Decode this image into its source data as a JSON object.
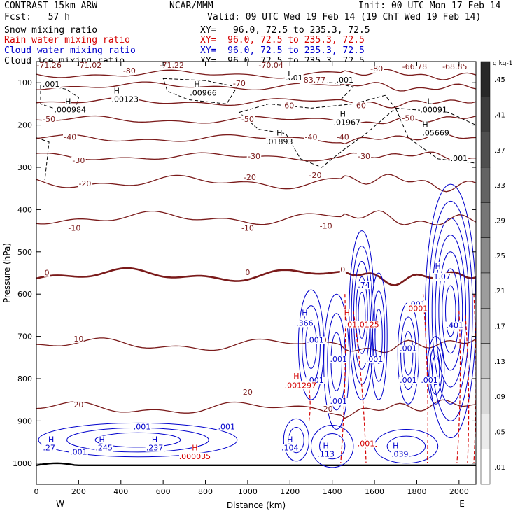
{
  "header": {
    "model": "CONTRAST 15km ARW",
    "org": "NCAR/MMM",
    "init": "Init: 00 UTC Mon 17 Feb 14",
    "fcst": "Fcst:   57 h",
    "valid": "Valid: 09 UTC Wed 19 Feb 14 (19 ChT Wed 19 Feb 14)"
  },
  "fields": [
    {
      "name": "Snow mixing ratio",
      "xy": "XY=   96.0, 72.5 to 235.3, 72.5",
      "color": "#000000"
    },
    {
      "name": "Rain water mixing ratio",
      "xy": "XY=  96.0, 72.5 to 235.3, 72.5",
      "color": "#d40000"
    },
    {
      "name": "Cloud water mixing ratio",
      "xy": "XY=  96.0, 72.5 to 235.3, 72.5",
      "color": "#0000cc"
    },
    {
      "name": "Cloud ice mixing ratio",
      "xy": "XY=  96.0, 72.5 to 235.3, 72.5",
      "color": "#000000"
    }
  ],
  "chart_data": {
    "type": "line",
    "title": "",
    "xlabel": "Distance (km)",
    "ylabel": "Pressure (hPa)",
    "xlim": [
      0,
      2080
    ],
    "ylim": [
      1050,
      50
    ],
    "x_ticks": [
      0,
      200,
      400,
      600,
      800,
      1000,
      1200,
      1400,
      1600,
      1800,
      2000
    ],
    "y_ticks": [
      100,
      200,
      300,
      400,
      500,
      600,
      700,
      800,
      900,
      1000
    ],
    "x_end_labels": {
      "left": "W",
      "right": "E"
    },
    "colors": {
      "temperature": "#7a1a1a",
      "cloud_water": "#0000cc",
      "rain": "#d40000",
      "ice": "#000000"
    },
    "temperature_isotherms": [
      {
        "value": -80,
        "p": 80
      },
      {
        "value": -70,
        "p": 108
      },
      {
        "value": -60,
        "p": 145
      },
      {
        "value": -50,
        "p": 188
      },
      {
        "value": -40,
        "p": 232
      },
      {
        "value": -30,
        "p": 275
      },
      {
        "value": -20,
        "p": 335
      },
      {
        "value": -10,
        "p": 420
      },
      {
        "value": 0,
        "p": 555
      },
      {
        "value": 10,
        "p": 720
      },
      {
        "value": 20,
        "p": 870
      }
    ],
    "temperature_labels": [
      {
        "text": "-71.26",
        "x": 60,
        "p": 65
      },
      {
        "text": "-71.02",
        "x": 250,
        "p": 65
      },
      {
        "text": "-80",
        "x": 440,
        "p": 78
      },
      {
        "text": "-71.22",
        "x": 640,
        "p": 65
      },
      {
        "text": "-70.04",
        "x": 1110,
        "p": 65
      },
      {
        "text": "-83.77",
        "x": 1310,
        "p": 100
      },
      {
        "text": "-80",
        "x": 1610,
        "p": 73
      },
      {
        "text": "-66.78",
        "x": 1790,
        "p": 68
      },
      {
        "text": "-68.85",
        "x": 1980,
        "p": 68
      },
      {
        "text": "-70",
        "x": 960,
        "p": 108
      },
      {
        "text": "-60",
        "x": 1190,
        "p": 160
      },
      {
        "text": "-60",
        "x": 1530,
        "p": 160
      },
      {
        "text": "-50",
        "x": 60,
        "p": 192
      },
      {
        "text": "-50",
        "x": 1000,
        "p": 192
      },
      {
        "text": "-50",
        "x": 1760,
        "p": 190
      },
      {
        "text": "-40",
        "x": 160,
        "p": 235
      },
      {
        "text": "-40",
        "x": 1300,
        "p": 235
      },
      {
        "text": "-40",
        "x": 1450,
        "p": 235
      },
      {
        "text": "-30",
        "x": 200,
        "p": 290
      },
      {
        "text": "-30",
        "x": 1030,
        "p": 280
      },
      {
        "text": "-30",
        "x": 1550,
        "p": 280
      },
      {
        "text": "-20",
        "x": 230,
        "p": 345
      },
      {
        "text": "-20",
        "x": 1010,
        "p": 330
      },
      {
        "text": "-20",
        "x": 1320,
        "p": 325
      },
      {
        "text": "-10",
        "x": 180,
        "p": 450
      },
      {
        "text": "-10",
        "x": 1000,
        "p": 450
      },
      {
        "text": "-10",
        "x": 1370,
        "p": 445
      },
      {
        "text": "0",
        "x": 50,
        "p": 556
      },
      {
        "text": "0",
        "x": 1000,
        "p": 555
      },
      {
        "text": "0",
        "x": 1450,
        "p": 548
      },
      {
        "text": "10",
        "x": 200,
        "p": 712
      },
      {
        "text": "10",
        "x": 1350,
        "p": 715
      },
      {
        "text": "20",
        "x": 200,
        "p": 868
      },
      {
        "text": "20",
        "x": 1000,
        "p": 838
      },
      {
        "text": "20",
        "x": 1380,
        "p": 878
      }
    ],
    "cloud_water_labels": [
      {
        "text": "H",
        "x": 1270,
        "p": 650
      },
      {
        "text": ".366",
        "x": 1270,
        "p": 675
      },
      {
        "text": ".001",
        "x": 1320,
        "p": 715
      },
      {
        "text": ".001",
        "x": 1430,
        "p": 760
      },
      {
        "text": ".001",
        "x": 1320,
        "p": 810
      },
      {
        "text": ".001",
        "x": 1430,
        "p": 860
      },
      {
        "text": ".74",
        "x": 1550,
        "p": 585
      },
      {
        "text": ".001",
        "x": 1600,
        "p": 760
      },
      {
        "text": ".001",
        "x": 1760,
        "p": 735
      },
      {
        "text": ".001",
        "x": 1760,
        "p": 810
      },
      {
        "text": ".001",
        "x": 1860,
        "p": 810
      },
      {
        "text": "H",
        "x": 1900,
        "p": 540
      },
      {
        "text": "1.07",
        "x": 1920,
        "p": 565
      },
      {
        "text": ".401",
        "x": 1980,
        "p": 680
      },
      {
        "text": ".001",
        "x": 1800,
        "p": 630
      },
      {
        "text": ".001",
        "x": 500,
        "p": 920
      },
      {
        "text": "H",
        "x": 70,
        "p": 950
      },
      {
        "text": ".27",
        "x": 60,
        "p": 970
      },
      {
        "text": ".001",
        "x": 200,
        "p": 980
      },
      {
        "text": "H",
        "x": 310,
        "p": 950
      },
      {
        "text": ".245",
        "x": 320,
        "p": 970
      },
      {
        "text": "H",
        "x": 560,
        "p": 950
      },
      {
        "text": ".237",
        "x": 560,
        "p": 970
      },
      {
        "text": ".001",
        "x": 900,
        "p": 920
      },
      {
        "text": "H",
        "x": 1200,
        "p": 950
      },
      {
        "text": ".104",
        "x": 1200,
        "p": 970
      },
      {
        "text": "H",
        "x": 1370,
        "p": 965
      },
      {
        "text": ".113",
        "x": 1370,
        "p": 985
      },
      {
        "text": "H",
        "x": 1700,
        "p": 965
      },
      {
        "text": ".039",
        "x": 1720,
        "p": 985
      }
    ],
    "rain_labels": [
      {
        "text": "H",
        "x": 1470,
        "p": 650
      },
      {
        "text": ".012",
        "x": 1500,
        "p": 678
      },
      {
        "text": ".0125",
        "x": 1570,
        "p": 678
      },
      {
        "text": "H",
        "x": 1230,
        "p": 800
      },
      {
        "text": ".001297",
        "x": 1250,
        "p": 822
      },
      {
        "text": "H",
        "x": 750,
        "p": 970
      },
      {
        "text": ".000035",
        "x": 750,
        "p": 990
      },
      {
        "text": ".001",
        "x": 1560,
        "p": 960
      },
      {
        "text": ".0001",
        "x": 1800,
        "p": 640
      }
    ],
    "ice_labels": [
      {
        "text": ".001",
        "x": 70,
        "p": 110
      },
      {
        "text": "H",
        "x": 380,
        "p": 125
      },
      {
        "text": ".00123",
        "x": 420,
        "p": 145
      },
      {
        "text": "H",
        "x": 760,
        "p": 110
      },
      {
        "text": ".00966",
        "x": 790,
        "p": 130
      },
      {
        "text": "H",
        "x": 150,
        "p": 150
      },
      {
        "text": ".000984",
        "x": 160,
        "p": 170
      },
      {
        "text": ".001",
        "x": 1220,
        "p": 95
      },
      {
        "text": "L",
        "x": 1200,
        "p": 85
      },
      {
        "text": ".001",
        "x": 1460,
        "p": 100
      },
      {
        "text": "H",
        "x": 1450,
        "p": 180
      },
      {
        "text": ".01967",
        "x": 1470,
        "p": 200
      },
      {
        "text": "H",
        "x": 1150,
        "p": 225
      },
      {
        "text": ".01893",
        "x": 1150,
        "p": 245
      },
      {
        "text": "L",
        "x": 1860,
        "p": 150
      },
      {
        "text": ".00091",
        "x": 1880,
        "p": 170
      },
      {
        "text": "H",
        "x": 1840,
        "p": 205
      },
      {
        "text": ".05669",
        "x": 1890,
        "p": 225
      },
      {
        "text": ".001",
        "x": 2000,
        "p": 285
      }
    ],
    "colorbar": {
      "unit": "g kg-1",
      "labels": [
        ".45",
        ".41",
        ".37",
        ".33",
        ".29",
        ".25",
        ".21",
        ".17",
        ".13",
        ".09",
        ".05",
        ".01"
      ]
    }
  }
}
